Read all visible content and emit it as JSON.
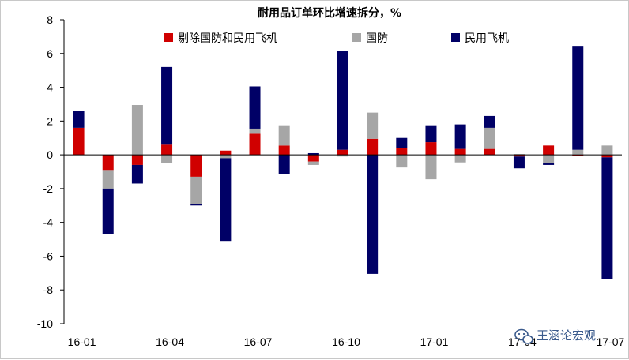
{
  "chart_data": {
    "type": "bar",
    "stacked": true,
    "title": "耐用品订单环比增速拆分，%",
    "xlabel": "",
    "ylabel": "",
    "ylim": [
      -10,
      8
    ],
    "yticks": [
      8,
      6,
      4,
      2,
      0,
      -2,
      -4,
      -6,
      -8,
      -10
    ],
    "x_tick_labels": [
      "16-01",
      "16-04",
      "16-07",
      "16-10",
      "17-01",
      "17-04",
      "17-07"
    ],
    "categories": [
      "16-01",
      "16-02",
      "16-03",
      "16-04",
      "16-05",
      "16-06",
      "16-07",
      "16-08",
      "16-09",
      "16-10",
      "16-11",
      "16-12",
      "17-01",
      "17-02",
      "17-03",
      "17-04",
      "17-05",
      "17-06",
      "17-07"
    ],
    "legend_position": "top",
    "grid": false,
    "series": [
      {
        "name": "剔除国防和民用飞机",
        "color": "#d00000",
        "values": [
          1.6,
          -0.9,
          -0.6,
          0.6,
          -1.3,
          0.25,
          1.25,
          0.55,
          -0.4,
          0.3,
          0.95,
          0.4,
          0.75,
          0.35,
          0.35,
          -0.1,
          0.55,
          -0.05,
          -0.15
        ]
      },
      {
        "name": "国防",
        "color": "#a6a6a6",
        "values": [
          0.0,
          -1.1,
          2.95,
          -0.5,
          -1.6,
          -0.2,
          0.3,
          1.2,
          -0.2,
          -0.1,
          1.55,
          -0.75,
          -1.45,
          -0.45,
          1.25,
          0.05,
          -0.5,
          0.3,
          0.55
        ]
      },
      {
        "name": "民用飞机",
        "color": "#000066",
        "values": [
          1.0,
          -2.7,
          -1.1,
          4.6,
          -0.1,
          -4.9,
          2.5,
          -1.15,
          0.1,
          5.85,
          -7.05,
          0.6,
          1.0,
          1.45,
          0.7,
          -0.7,
          -0.1,
          6.15,
          -7.2
        ]
      }
    ]
  },
  "watermark": {
    "text": "王涵论宏观",
    "icon": "wechat-icon"
  }
}
